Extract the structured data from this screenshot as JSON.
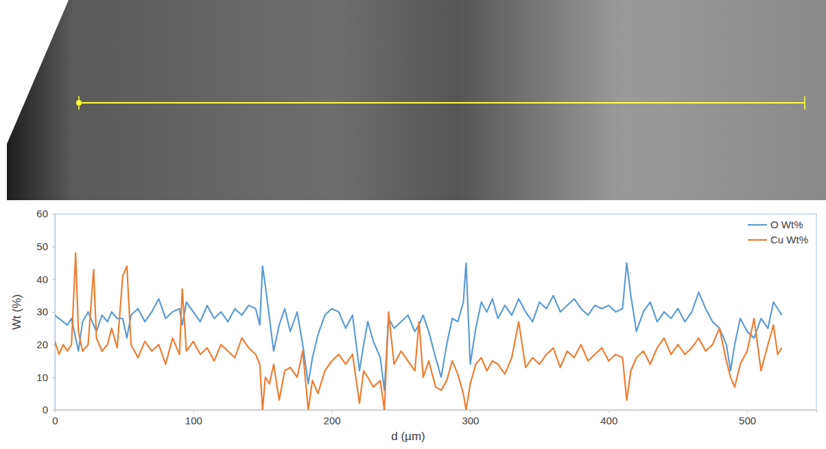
{
  "chart_data": {
    "type": "line",
    "x_label": "d (µm)",
    "y_label": "Wt (%)",
    "xlim": [
      0,
      550
    ],
    "xticks": [
      0,
      100,
      200,
      300,
      400,
      500
    ],
    "ylim": [
      0,
      60
    ],
    "yticks": [
      0,
      10,
      20,
      30,
      40,
      50,
      60
    ],
    "grid": false,
    "legend": "upper right",
    "x": [
      0,
      3,
      6,
      9,
      12,
      15,
      17,
      20,
      24,
      28,
      30,
      34,
      38,
      41,
      45,
      49,
      52,
      55,
      60,
      65,
      70,
      75,
      80,
      85,
      90,
      92,
      95,
      100,
      105,
      110,
      115,
      120,
      125,
      130,
      135,
      140,
      145,
      148,
      150,
      152,
      155,
      158,
      162,
      166,
      170,
      175,
      179,
      183,
      186,
      190,
      195,
      200,
      205,
      210,
      215,
      220,
      223,
      226,
      230,
      235,
      238,
      241,
      245,
      250,
      255,
      260,
      263,
      266,
      270,
      275,
      279,
      283,
      287,
      291,
      295,
      297,
      300,
      304,
      308,
      312,
      316,
      320,
      325,
      330,
      335,
      340,
      345,
      350,
      355,
      360,
      365,
      370,
      375,
      380,
      385,
      390,
      395,
      400,
      405,
      410,
      413,
      416,
      420,
      425,
      430,
      435,
      440,
      445,
      450,
      455,
      460,
      465,
      470,
      475,
      480,
      485,
      488,
      491,
      495,
      500,
      505,
      510,
      515,
      519,
      522,
      525
    ],
    "series": [
      {
        "name": "O Wt%",
        "color": "#5b9bd5",
        "values": [
          29,
          28,
          27,
          26,
          28,
          22,
          18,
          27,
          30,
          26,
          24,
          29,
          27,
          30,
          28,
          28,
          22,
          29,
          31,
          27,
          30,
          34,
          28,
          30,
          31,
          26,
          33,
          30,
          27,
          32,
          28,
          30,
          27,
          31,
          29,
          32,
          31,
          26,
          44,
          38,
          28,
          18,
          26,
          31,
          24,
          30,
          20,
          8,
          16,
          23,
          29,
          31,
          30,
          25,
          29,
          12,
          20,
          27,
          21,
          16,
          6,
          28,
          25,
          27,
          29,
          24,
          26,
          29,
          24,
          16,
          10,
          20,
          28,
          27,
          33,
          45,
          14,
          25,
          33,
          30,
          34,
          28,
          32,
          29,
          34,
          30,
          27,
          33,
          31,
          35,
          30,
          32,
          34,
          31,
          29,
          32,
          31,
          32,
          30,
          31,
          45,
          35,
          24,
          30,
          33,
          27,
          30,
          28,
          31,
          27,
          30,
          36,
          31,
          27,
          25,
          20,
          12,
          20,
          28,
          24,
          22,
          28,
          25,
          33,
          31,
          29
        ]
      },
      {
        "name": "Cu Wt%",
        "color": "#ed7d31",
        "values": [
          21,
          17,
          20,
          18,
          20,
          48,
          24,
          18,
          20,
          43,
          22,
          18,
          20,
          25,
          19,
          41,
          44,
          20,
          16,
          21,
          18,
          20,
          14,
          22,
          17,
          37,
          18,
          21,
          17,
          19,
          15,
          20,
          18,
          16,
          22,
          19,
          17,
          14,
          0,
          10,
          8,
          14,
          3,
          12,
          13,
          10,
          18,
          0,
          9,
          5,
          12,
          15,
          17,
          14,
          17,
          2,
          12,
          10,
          7,
          9,
          0,
          30,
          14,
          18,
          15,
          12,
          27,
          10,
          15,
          7,
          6,
          9,
          15,
          11,
          5,
          0,
          8,
          14,
          16,
          12,
          15,
          14,
          11,
          16,
          27,
          13,
          16,
          14,
          17,
          19,
          13,
          18,
          16,
          20,
          15,
          17,
          19,
          15,
          17,
          16,
          3,
          12,
          16,
          18,
          14,
          19,
          22,
          17,
          20,
          17,
          19,
          22,
          18,
          20,
          25,
          15,
          10,
          7,
          14,
          18,
          28,
          12,
          20,
          26,
          17,
          19
        ]
      }
    ]
  }
}
